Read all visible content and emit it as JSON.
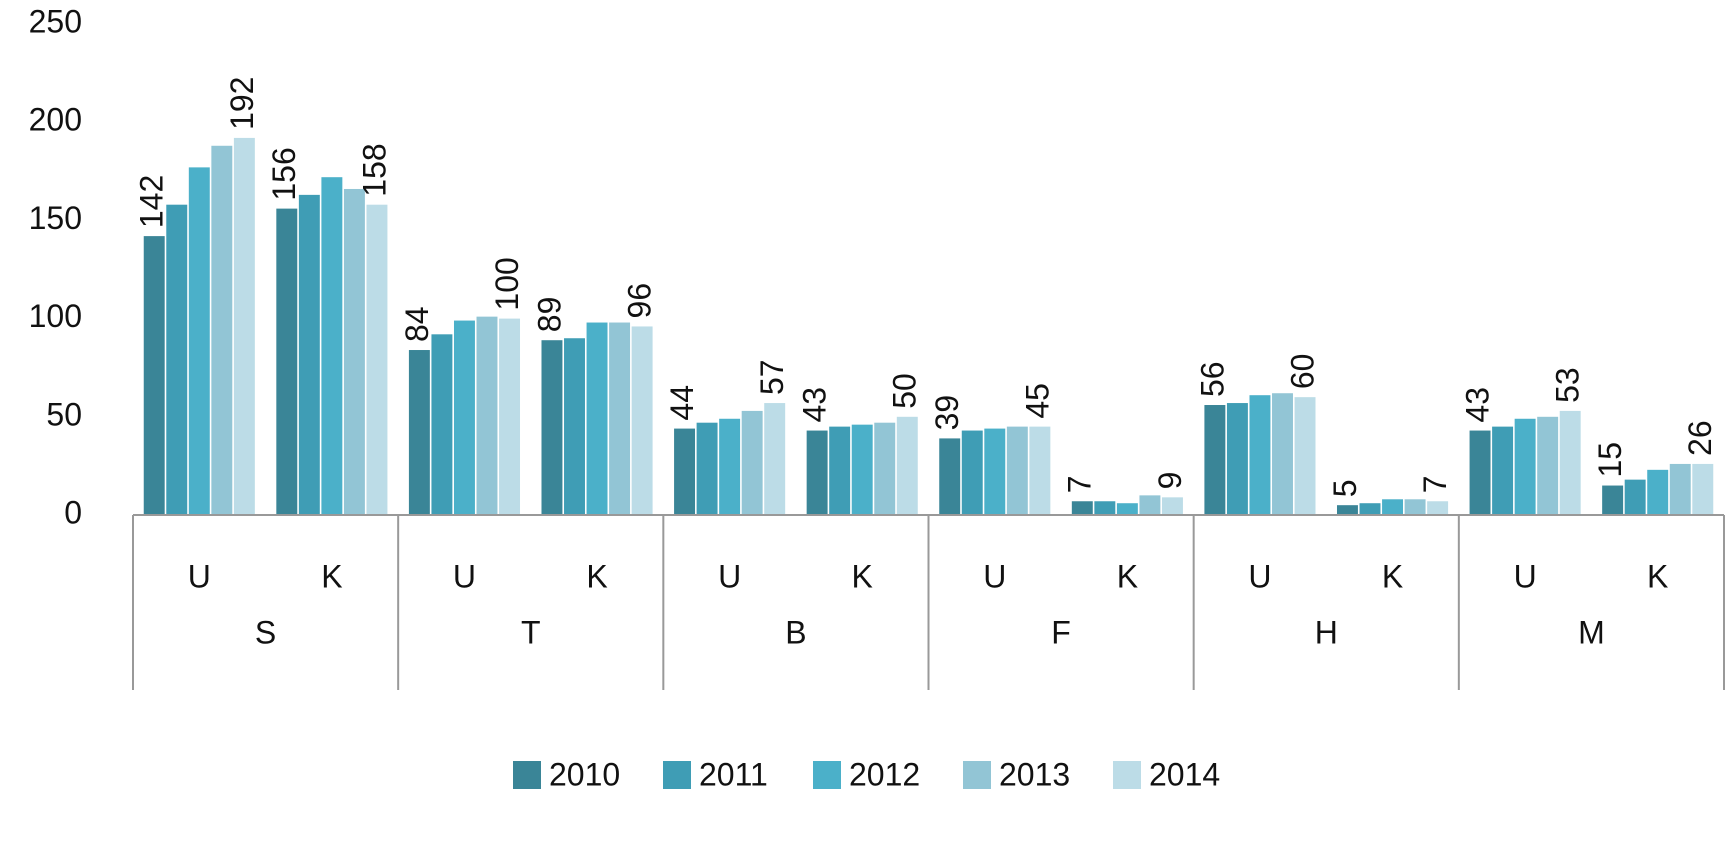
{
  "chart_data": {
    "type": "bar",
    "groups": [
      "S",
      "T",
      "B",
      "F",
      "H",
      "M"
    ],
    "categories": [
      "U",
      "K",
      "U",
      "K",
      "U",
      "K",
      "U",
      "K",
      "U",
      "K",
      "U",
      "K"
    ],
    "series": [
      {
        "name": "2010",
        "color": "#3a8597",
        "show_labels": true,
        "values": [
          142,
          156,
          84,
          89,
          44,
          43,
          39,
          7,
          56,
          5,
          43,
          15
        ]
      },
      {
        "name": "2011",
        "color": "#3f9db5",
        "show_labels": false,
        "values": [
          158,
          163,
          92,
          90,
          47,
          45,
          43,
          7,
          57,
          6,
          45,
          18
        ]
      },
      {
        "name": "2012",
        "color": "#4bb0c9",
        "show_labels": false,
        "values": [
          177,
          172,
          99,
          98,
          49,
          46,
          44,
          6,
          61,
          8,
          49,
          23
        ]
      },
      {
        "name": "2013",
        "color": "#92c5d5",
        "show_labels": false,
        "values": [
          188,
          166,
          101,
          98,
          53,
          47,
          45,
          10,
          62,
          8,
          50,
          26
        ]
      },
      {
        "name": "2014",
        "color": "#bcdce7",
        "show_labels": true,
        "values": [
          192,
          158,
          100,
          96,
          57,
          50,
          45,
          9,
          60,
          7,
          53,
          26
        ]
      }
    ],
    "ylim": [
      0,
      250
    ],
    "yticks": [
      0,
      50,
      100,
      150,
      200,
      250
    ],
    "grid": false,
    "legend": "bottom"
  }
}
